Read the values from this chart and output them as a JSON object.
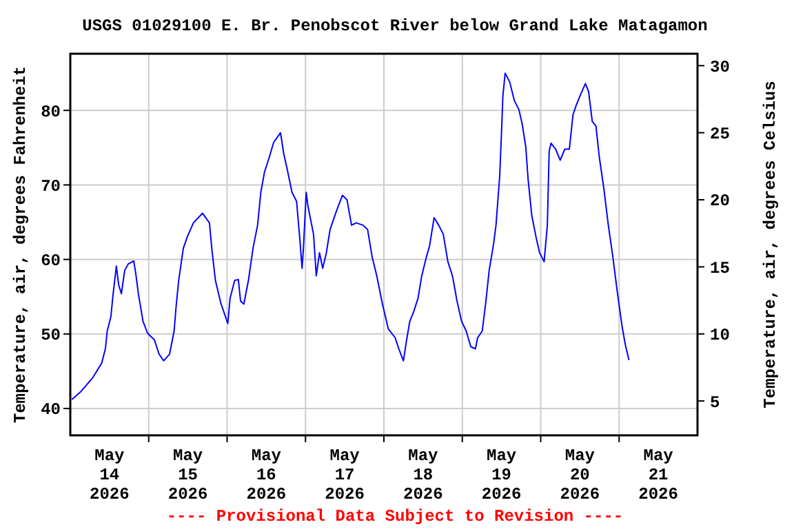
{
  "chart_data": {
    "type": "line",
    "title": "USGS 01029100 E. Br. Penobscot River below Grand Lake Matagamon",
    "ylabel": "Temperature, air, degrees Fahrenheit",
    "y2label": "Temperature, air, degrees Celsius",
    "annotations": [
      "---- Provisional Data Subject to Revision ----"
    ],
    "xlim": [
      "2026-05-13T12:00",
      "2026-05-21T12:00"
    ],
    "xticks": [
      {
        "value": "2026-05-14T00:00",
        "label": "May\n14\n2026"
      },
      {
        "value": "2026-05-15T00:00",
        "label": "May\n15\n2026"
      },
      {
        "value": "2026-05-16T00:00",
        "label": "May\n16\n2026"
      },
      {
        "value": "2026-05-17T00:00",
        "label": "May\n17\n2026"
      },
      {
        "value": "2026-05-18T00:00",
        "label": "May\n18\n2026"
      },
      {
        "value": "2026-05-19T00:00",
        "label": "May\n19\n2026"
      },
      {
        "value": "2026-05-20T00:00",
        "label": "May\n20\n2026"
      },
      {
        "value": "2026-05-21T00:00",
        "label": "May\n21\n2026"
      },
      {
        "value": "2026-05-14T12:00",
        "label": null
      },
      {
        "value": "2026-05-15T12:00",
        "label": null
      },
      {
        "value": "2026-05-16T12:00",
        "label": null
      },
      {
        "value": "2026-05-17T12:00",
        "label": null
      },
      {
        "value": "2026-05-18T12:00",
        "label": null
      },
      {
        "value": "2026-05-19T12:00",
        "label": null
      },
      {
        "value": "2026-05-20T12:00",
        "label": null
      }
    ],
    "ylim": [
      36.4,
      87.6
    ],
    "yticks": [
      40,
      50,
      60,
      70,
      80
    ],
    "y2lim": [
      2.44,
      30.89
    ],
    "y2ticks": [
      5,
      10,
      15,
      20,
      25,
      30
    ],
    "grid": true,
    "line_style": "solid",
    "series": [
      {
        "color": "#0000ff",
        "x": [
          "2026-05-13T12:29",
          "2026-05-13T15:18",
          "2026-05-13T18:49",
          "2026-05-13T21:37",
          "2026-05-13T22:44",
          "2026-05-13T23:18",
          "2026-05-14T00:25",
          "2026-05-14T01:07",
          "2026-05-14T02:06",
          "2026-05-14T02:48",
          "2026-05-14T03:39",
          "2026-05-14T04:38",
          "2026-05-14T05:45",
          "2026-05-14T07:26",
          "2026-05-14T08:08",
          "2026-05-14T08:50",
          "2026-05-14T10:15",
          "2026-05-14T11:39",
          "2026-05-14T13:45",
          "2026-05-14T15:10",
          "2026-05-14T16:34",
          "2026-05-14T18:23",
          "2026-05-14T19:47",
          "2026-05-14T20:21",
          "2026-05-14T21:11",
          "2026-05-14T22:36",
          "2026-05-14T23:52",
          "2026-05-15T01:41",
          "2026-05-15T04:29",
          "2026-05-15T06:36",
          "2026-05-15T07:18",
          "2026-05-15T08:25",
          "2026-05-15T10:06",
          "2026-05-15T12:13",
          "2026-05-15T12:55",
          "2026-05-15T14:19",
          "2026-05-15T15:26",
          "2026-05-15T16:08",
          "2026-05-15T17:07",
          "2026-05-15T18:32",
          "2026-05-15T19:56",
          "2026-05-15T21:20",
          "2026-05-15T22:19",
          "2026-05-15T23:26",
          "2026-05-16T00:50",
          "2026-05-16T02:15",
          "2026-05-16T04:21",
          "2026-05-16T05:20",
          "2026-05-16T06:27",
          "2026-05-16T07:52",
          "2026-05-16T09:16",
          "2026-05-16T10:15",
          "2026-05-16T10:57",
          "2026-05-16T11:22",
          "2026-05-16T12:13",
          "2026-05-16T12:46",
          "2026-05-16T14:27",
          "2026-05-16T15:18",
          "2026-05-16T16:17",
          "2026-05-16T17:16",
          "2026-05-16T18:23",
          "2026-05-16T19:31",
          "2026-05-16T21:28",
          "2026-05-16T23:18",
          "2026-05-17T00:42",
          "2026-05-17T02:06",
          "2026-05-17T03:31",
          "2026-05-17T05:37",
          "2026-05-17T07:01",
          "2026-05-17T08:25",
          "2026-05-17T09:49",
          "2026-05-17T11:31",
          "2026-05-17T13:20",
          "2026-05-17T15:26",
          "2026-05-17T16:34",
          "2026-05-17T17:58",
          "2026-05-17T18:57",
          "2026-05-17T19:56",
          "2026-05-17T21:03",
          "2026-05-17T22:27",
          "2026-05-17T23:35",
          "2026-05-18T00:59",
          "2026-05-18T01:58",
          "2026-05-18T03:22",
          "2026-05-18T04:46",
          "2026-05-18T06:10",
          "2026-05-18T07:35",
          "2026-05-18T08:59",
          "2026-05-18T10:23",
          "2026-05-18T11:47",
          "2026-05-18T13:11",
          "2026-05-18T14:35",
          "2026-05-18T16:00",
          "2026-05-18T16:42",
          "2026-05-18T18:06",
          "2026-05-18T19:14",
          "2026-05-18T20:13",
          "2026-05-18T21:37",
          "2026-05-18T22:19",
          "2026-05-18T23:26",
          "2026-05-19T00:00",
          "2026-05-19T00:25",
          "2026-05-19T01:07",
          "2026-05-19T02:31",
          "2026-05-19T03:56",
          "2026-05-19T05:20",
          "2026-05-19T06:19",
          "2026-05-19T07:26",
          "2026-05-19T08:08",
          "2026-05-19T09:16",
          "2026-05-19T10:40",
          "2026-05-19T11:39",
          "2026-05-19T13:03",
          "2026-05-19T14:02",
          "2026-05-19T14:35",
          "2026-05-19T15:10",
          "2026-05-19T16:34",
          "2026-05-19T17:58",
          "2026-05-19T19:22",
          "2026-05-19T20:46",
          "2026-05-19T21:53",
          "2026-05-19T22:53",
          "2026-05-20T00:17",
          "2026-05-20T01:41",
          "2026-05-20T02:40",
          "2026-05-20T03:47",
          "2026-05-20T04:55",
          "2026-05-20T05:53",
          "2026-05-20T07:18",
          "2026-05-20T08:42",
          "2026-05-20T10:06",
          "2026-05-20T11:31",
          "2026-05-20T12:55",
          "2026-05-20T13:53",
          "2026-05-20T15:01"
        ],
        "values": [
          41.2,
          42.3,
          44.1,
          46.1,
          48.0,
          50.4,
          52.3,
          55.4,
          59.1,
          56.6,
          55.4,
          58.5,
          59.4,
          59.8,
          57.8,
          55.4,
          51.7,
          50.1,
          49.2,
          47.3,
          46.4,
          47.3,
          50.4,
          53.5,
          57.2,
          61.5,
          63.1,
          64.9,
          66.2,
          64.9,
          61.5,
          57.2,
          54.1,
          51.4,
          54.8,
          57.2,
          57.3,
          54.4,
          54.0,
          57.2,
          61.5,
          64.6,
          69.0,
          71.7,
          73.6,
          75.7,
          77.0,
          74.2,
          72.0,
          69.0,
          67.8,
          62.8,
          58.8,
          61.5,
          69.0,
          67.1,
          63.4,
          57.8,
          60.9,
          58.8,
          60.9,
          64.0,
          66.5,
          68.6,
          68.0,
          64.6,
          64.9,
          64.6,
          64.0,
          60.3,
          57.8,
          54.1,
          50.7,
          49.5,
          48.0,
          46.4,
          49.2,
          51.7,
          52.9,
          54.8,
          57.8,
          60.3,
          61.8,
          65.6,
          64.6,
          63.4,
          59.7,
          57.8,
          54.4,
          51.7,
          50.4,
          48.3,
          48.0,
          49.5,
          50.4,
          54.4,
          58.5,
          62.2,
          64.6,
          71.1,
          77.0,
          81.9,
          85.0,
          83.8,
          81.3,
          80.1,
          78.2,
          75.1,
          70.8,
          65.9,
          62.8,
          60.9,
          59.7,
          64.6,
          74.5,
          75.6,
          74.8,
          73.3,
          74.8,
          74.8,
          79.4,
          80.7,
          82.2,
          83.6,
          82.5,
          78.5,
          77.9,
          73.9,
          69.6,
          64.6,
          60.3,
          55.4,
          51.0,
          48.6,
          46.5
        ]
      }
    ]
  }
}
